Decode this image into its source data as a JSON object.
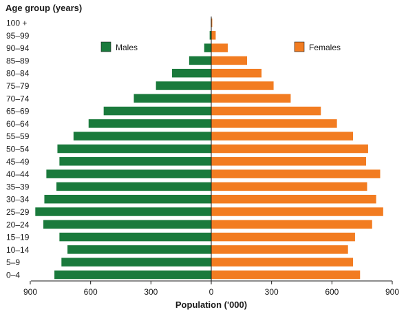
{
  "chart_data": {
    "type": "bar",
    "orientation": "horizontal",
    "subtype": "population-pyramid",
    "title": "Age group (years)",
    "xlabel": "Population ('000)",
    "xlim": [
      -900,
      900
    ],
    "xticks": [
      "900",
      "600",
      "300",
      "0",
      "300",
      "600",
      "900"
    ],
    "categories": [
      "0–4",
      "5–9",
      "10–14",
      "15–19",
      "20–24",
      "25–29",
      "30–34",
      "35–39",
      "40–44",
      "45–49",
      "50–54",
      "55–59",
      "60–64",
      "65–69",
      "70–74",
      "75–79",
      "80–84",
      "85–89",
      "90–94",
      "95–99",
      "100 +"
    ],
    "series": [
      {
        "name": "Males",
        "color": "#1a7a3c",
        "values": [
          780,
          745,
          715,
          755,
          835,
          875,
          830,
          770,
          820,
          755,
          765,
          685,
          610,
          535,
          385,
          275,
          195,
          110,
          35,
          8,
          2
        ]
      },
      {
        "name": "Females",
        "color": "#f27c21",
        "values": [
          740,
          705,
          680,
          715,
          800,
          855,
          820,
          775,
          840,
          770,
          780,
          705,
          625,
          545,
          395,
          310,
          250,
          178,
          82,
          22,
          5
        ]
      }
    ],
    "legend_position": "top"
  }
}
